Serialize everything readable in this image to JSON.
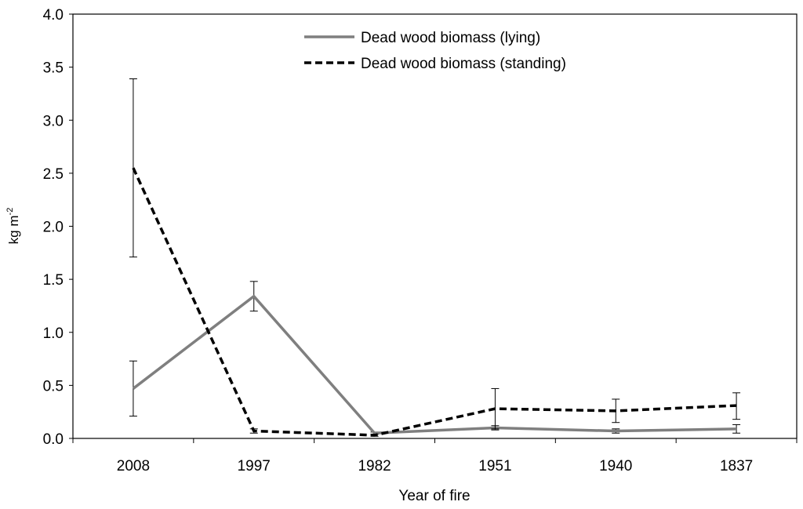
{
  "chart_data": {
    "type": "line",
    "xlabel": "Year of fire",
    "ylabel": "kg m",
    "ylabel_superscript": "-2",
    "categories": [
      "2008",
      "1997",
      "1982",
      "1951",
      "1940",
      "1837"
    ],
    "ylim": [
      0,
      4.0
    ],
    "yticks": [
      "0.0",
      "0.5",
      "1.0",
      "1.5",
      "2.0",
      "2.5",
      "3.0",
      "3.5",
      "4.0"
    ],
    "legend_position": "top-center",
    "grid": false,
    "series": [
      {
        "name": "Dead wood biomass (lying)",
        "style": "solid",
        "color": "#7f7f7f",
        "values": [
          0.47,
          1.34,
          0.05,
          0.1,
          0.07,
          0.09
        ],
        "error_low": [
          0.21,
          1.2,
          0.04,
          0.08,
          0.05,
          0.05
        ],
        "error_high": [
          0.73,
          1.48,
          0.06,
          0.12,
          0.09,
          0.13
        ]
      },
      {
        "name": "Dead wood biomass (standing)",
        "style": "dashed",
        "color": "#000000",
        "values": [
          2.55,
          0.07,
          0.03,
          0.28,
          0.26,
          0.31
        ],
        "error_low": [
          1.71,
          0.05,
          0.02,
          0.09,
          0.15,
          0.18
        ],
        "error_high": [
          3.39,
          0.09,
          0.04,
          0.47,
          0.37,
          0.43
        ]
      }
    ]
  }
}
